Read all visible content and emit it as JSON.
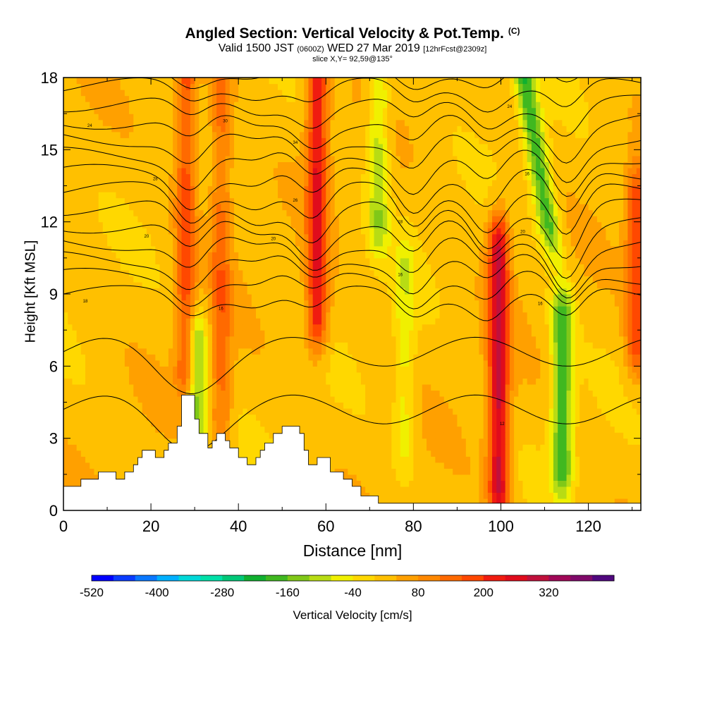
{
  "chart_data": {
    "type": "heatmap",
    "title": "Angled Section: Vertical Velocity & Pot.Temp.",
    "title_suffix": "(C)",
    "subtitle": {
      "part1": "Valid 1500 JST ",
      "part2": "(0600Z)",
      "part3": " WED 27 Mar 2019 ",
      "part4": "[12hrFcst@2309z]"
    },
    "slice_label": "slice X,Y= 92,59@135°",
    "xlabel": "Distance [nm]",
    "ylabel": "Height [Kft MSL]",
    "xlim": [
      0,
      132
    ],
    "ylim": [
      0,
      18
    ],
    "xticks": [
      0,
      20,
      40,
      60,
      80,
      100,
      120
    ],
    "yticks": [
      0,
      3,
      6,
      9,
      12,
      15,
      18
    ],
    "colorbar": {
      "label": "Vertical Velocity [cm/s]",
      "levels_min": -520,
      "level_step": 40,
      "tick_labels": [
        "-520",
        "-400",
        "-280",
        "-160",
        "-40",
        "80",
        "200",
        "320"
      ],
      "colors": [
        "#0000ff",
        "#0a3cff",
        "#0a78ff",
        "#00b0ff",
        "#00d8d8",
        "#00e0a8",
        "#00c878",
        "#10b030",
        "#40b820",
        "#80c818",
        "#b8dc14",
        "#f0f000",
        "#ffd800",
        "#ffc000",
        "#ffa000",
        "#ff8800",
        "#ff6a00",
        "#ff4800",
        "#f01c10",
        "#e00c1c",
        "#c0103c",
        "#a00858",
        "#800a6a",
        "#50087e"
      ]
    },
    "velocity_features": [
      {
        "x": 28,
        "z_bottom": 6,
        "z_top": 18,
        "w": 180
      },
      {
        "x": 30.5,
        "z_bottom": 3,
        "z_top": 7,
        "w": -150
      },
      {
        "x": 36,
        "z_bottom": 4,
        "z_top": 18,
        "w": 140
      },
      {
        "x": 58,
        "z_bottom": 8,
        "z_top": 18,
        "w": 240
      },
      {
        "x": 72,
        "z_bottom": 12,
        "z_top": 17,
        "w": -110
      },
      {
        "x": 78,
        "z_bottom": 3,
        "z_top": 10,
        "w": -60
      },
      {
        "x": 99.5,
        "z_bottom": 1,
        "z_top": 11,
        "w": 290
      },
      {
        "x": 109,
        "z_bottom": 12,
        "z_top": 18,
        "w": -190
      },
      {
        "x": 114,
        "z_bottom": 2,
        "z_top": 8,
        "w": -190
      },
      {
        "x": 131,
        "z_bottom": 7,
        "z_top": 13,
        "w": 190
      }
    ],
    "pot_temp_contour_labels": [
      {
        "x": 6,
        "y": 16,
        "text": "24"
      },
      {
        "x": 37,
        "y": 16.2,
        "text": "30"
      },
      {
        "x": 21,
        "y": 13.8,
        "text": "28"
      },
      {
        "x": 53,
        "y": 15.3,
        "text": "34"
      },
      {
        "x": 102,
        "y": 16.8,
        "text": "24"
      },
      {
        "x": 53,
        "y": 12.9,
        "text": "26"
      },
      {
        "x": 19,
        "y": 11.4,
        "text": "20"
      },
      {
        "x": 48,
        "y": 11.3,
        "text": "20"
      },
      {
        "x": 77,
        "y": 12,
        "text": "18"
      },
      {
        "x": 106,
        "y": 14,
        "text": "16"
      },
      {
        "x": 105,
        "y": 11.6,
        "text": "20"
      },
      {
        "x": 5,
        "y": 8.7,
        "text": "18"
      },
      {
        "x": 36,
        "y": 8.4,
        "text": "16"
      },
      {
        "x": 77,
        "y": 9.8,
        "text": "16"
      },
      {
        "x": 109,
        "y": 8.6,
        "text": "16"
      },
      {
        "x": 100.3,
        "y": 3.6,
        "text": "12"
      }
    ],
    "terrain_profile": [
      [
        0,
        1
      ],
      [
        4,
        1
      ],
      [
        4,
        1.3
      ],
      [
        8,
        1.3
      ],
      [
        8,
        1.6
      ],
      [
        12,
        1.6
      ],
      [
        12,
        1.3
      ],
      [
        14,
        1.3
      ],
      [
        14,
        1.6
      ],
      [
        16,
        1.6
      ],
      [
        16,
        1.9
      ],
      [
        17,
        1.9
      ],
      [
        17,
        2.2
      ],
      [
        18,
        2.2
      ],
      [
        18,
        2.5
      ],
      [
        21,
        2.5
      ],
      [
        21,
        2.2
      ],
      [
        23,
        2.2
      ],
      [
        23,
        2.5
      ],
      [
        24,
        2.5
      ],
      [
        24,
        2.8
      ],
      [
        26,
        2.8
      ],
      [
        26,
        3.5
      ],
      [
        27,
        3.5
      ],
      [
        27,
        4.8
      ],
      [
        30,
        4.8
      ],
      [
        30,
        3.8
      ],
      [
        31,
        3.8
      ],
      [
        31,
        3.2
      ],
      [
        33,
        3.2
      ],
      [
        33,
        2.6
      ],
      [
        34,
        2.6
      ],
      [
        34,
        2.9
      ],
      [
        35,
        2.9
      ],
      [
        35,
        3.2
      ],
      [
        37,
        3.2
      ],
      [
        37,
        2.9
      ],
      [
        38,
        2.9
      ],
      [
        38,
        2.6
      ],
      [
        40,
        2.6
      ],
      [
        40,
        2.2
      ],
      [
        42,
        2.2
      ],
      [
        42,
        1.9
      ],
      [
        44,
        1.9
      ],
      [
        44,
        2.2
      ],
      [
        45,
        2.2
      ],
      [
        45,
        2.5
      ],
      [
        46,
        2.5
      ],
      [
        46,
        2.8
      ],
      [
        48,
        2.8
      ],
      [
        48,
        3.2
      ],
      [
        50,
        3.2
      ],
      [
        50,
        3.5
      ],
      [
        54,
        3.5
      ],
      [
        54,
        3.2
      ],
      [
        55,
        3.2
      ],
      [
        55,
        2.5
      ],
      [
        56,
        2.5
      ],
      [
        56,
        1.9
      ],
      [
        58,
        1.9
      ],
      [
        58,
        2.2
      ],
      [
        61,
        2.2
      ],
      [
        61,
        1.6
      ],
      [
        64,
        1.6
      ],
      [
        64,
        1.3
      ],
      [
        66,
        1.3
      ],
      [
        66,
        1
      ],
      [
        68,
        1
      ],
      [
        68,
        0.6
      ],
      [
        72,
        0.6
      ],
      [
        72,
        0.3
      ],
      [
        132,
        0.3
      ]
    ]
  }
}
